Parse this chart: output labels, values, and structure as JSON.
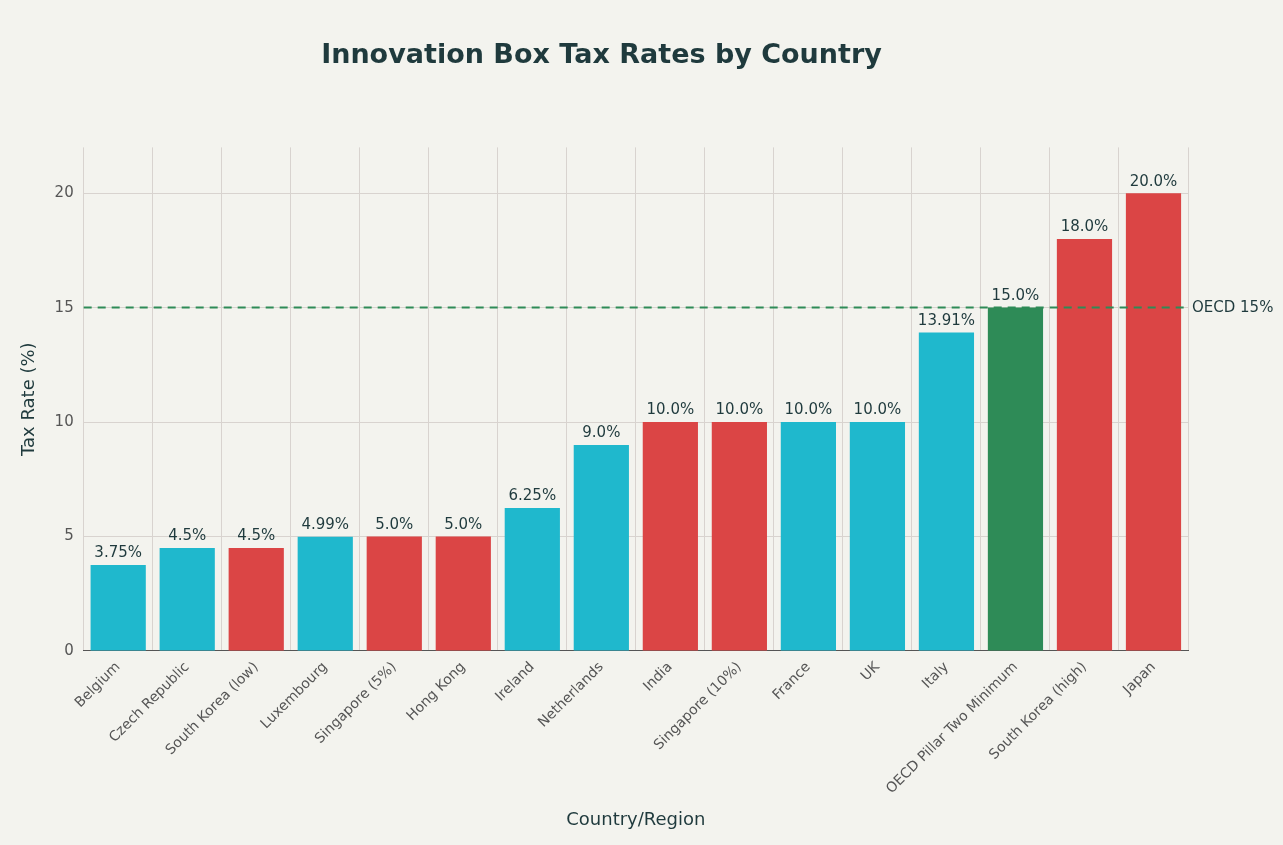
{
  "chart_data": {
    "type": "bar",
    "title": "Innovation Box Tax Rates by Country",
    "xlabel": "Country/Region",
    "ylabel": "Tax Rate (%)",
    "categories": [
      "Belgium",
      "Czech Republic",
      "South Korea (low)",
      "Luxembourg",
      "Singapore (5%)",
      "Hong Kong",
      "Ireland",
      "Netherlands",
      "India",
      "Singapore (10%)",
      "France",
      "UK",
      "Italy",
      "OECD Pillar Two Minimum",
      "South Korea (high)",
      "Japan"
    ],
    "values": [
      3.75,
      4.5,
      4.5,
      4.99,
      5,
      5,
      6.25,
      9,
      10,
      10,
      10,
      10,
      13.91,
      15,
      18,
      20
    ],
    "colors": [
      "#1fb8cd",
      "#1fb8cd",
      "#db4545",
      "#1fb8cd",
      "#db4545",
      "#db4545",
      "#1fb8cd",
      "#1fb8cd",
      "#db4545",
      "#db4545",
      "#1fb8cd",
      "#1fb8cd",
      "#1fb8cd",
      "#2e8b57",
      "#db4545",
      "#db4545"
    ],
    "value_labels": [
      "3.75%",
      "4.5%",
      "4.5%",
      "4.99%",
      "5.0%",
      "5.0%",
      "6.25%",
      "9.0%",
      "10.0%",
      "10.0%",
      "10.0%",
      "10.0%",
      "13.91%",
      "15.0%",
      "18.0%",
      "20.0%"
    ],
    "ylim": [
      0,
      22
    ],
    "yticks": [
      0,
      5,
      10,
      15,
      20
    ],
    "grid": true,
    "ref_lines": [
      {
        "axis": "y",
        "value": 15,
        "label": "OECD 15%",
        "color": "#2e8b57",
        "line_style": "dashed"
      }
    ]
  }
}
